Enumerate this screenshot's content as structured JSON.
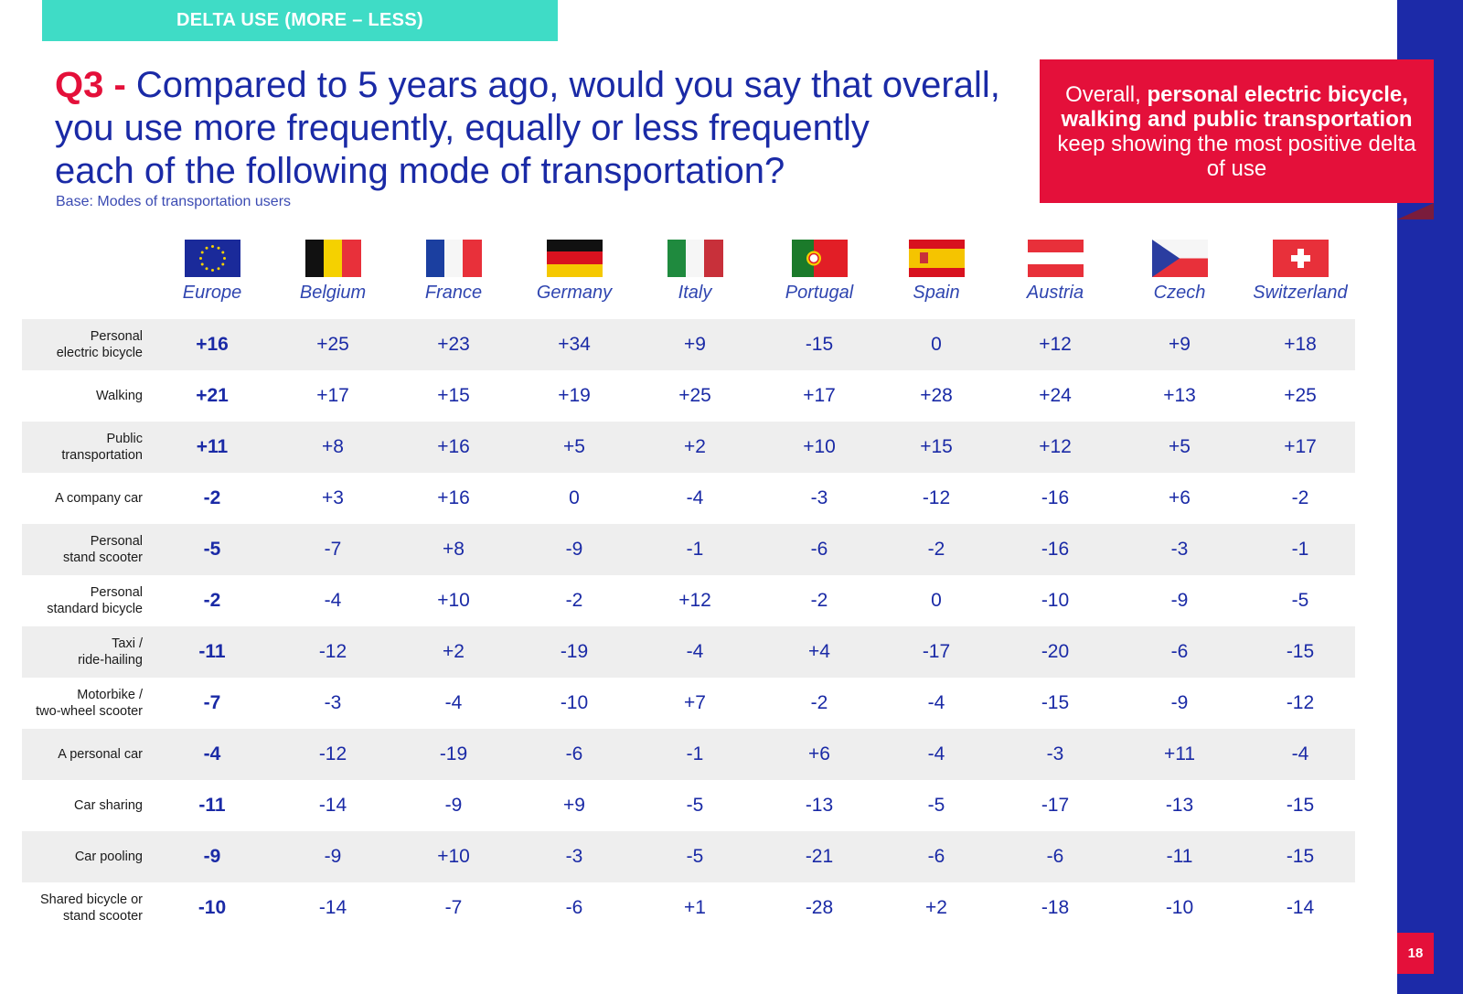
{
  "header": {
    "tag": "DELTA USE (MORE – LESS)",
    "page_number": "18"
  },
  "question": {
    "number": "Q3 -",
    "line1": " Compared to 5 years ago, would you say that overall,",
    "line2": "you use more frequently, equally or less frequently",
    "line3": "each of the following mode of transportation?",
    "base": "Base: Modes of transportation users"
  },
  "callout": {
    "prefix": "Overall, ",
    "bold": "personal electric bicycle, walking and public transportation",
    "suffix": " keep showing the most positive delta of use"
  },
  "countries": [
    {
      "name": "Europe",
      "flag": "eu-flag-icon"
    },
    {
      "name": "Belgium",
      "flag": "belgium-flag-icon"
    },
    {
      "name": "France",
      "flag": "france-flag-icon"
    },
    {
      "name": "Germany",
      "flag": "germany-flag-icon"
    },
    {
      "name": "Italy",
      "flag": "italy-flag-icon"
    },
    {
      "name": "Portugal",
      "flag": "portugal-flag-icon"
    },
    {
      "name": "Spain",
      "flag": "spain-flag-icon"
    },
    {
      "name": "Austria",
      "flag": "austria-flag-icon"
    },
    {
      "name": "Czech",
      "flag": "czech-flag-icon"
    },
    {
      "name": "Switzerland",
      "flag": "switzerland-flag-icon"
    }
  ],
  "rows": [
    {
      "label": [
        "Personal",
        "electric bicycle"
      ],
      "values": [
        "+16",
        "+25",
        "+23",
        "+34",
        "+9",
        "-15",
        "0",
        "+12",
        "+9",
        "+18"
      ]
    },
    {
      "label": [
        "Walking"
      ],
      "values": [
        "+21",
        "+17",
        "+15",
        "+19",
        "+25",
        "+17",
        "+28",
        "+24",
        "+13",
        "+25"
      ]
    },
    {
      "label": [
        "Public",
        "transportation"
      ],
      "values": [
        "+11",
        "+8",
        "+16",
        "+5",
        "+2",
        "+10",
        "+15",
        "+12",
        "+5",
        "+17"
      ]
    },
    {
      "label": [
        "A company car"
      ],
      "values": [
        "-2",
        "+3",
        "+16",
        "0",
        "-4",
        "-3",
        "-12",
        "-16",
        "+6",
        "-2"
      ]
    },
    {
      "label": [
        "Personal",
        "stand scooter"
      ],
      "values": [
        "-5",
        "-7",
        "+8",
        "-9",
        "-1",
        "-6",
        "-2",
        "-16",
        "-3",
        "-1"
      ]
    },
    {
      "label": [
        "Personal",
        "standard bicycle"
      ],
      "values": [
        "-2",
        "-4",
        "+10",
        "-2",
        "+12",
        "-2",
        "0",
        "-10",
        "-9",
        "-5"
      ]
    },
    {
      "label": [
        "Taxi /",
        "ride-hailing"
      ],
      "values": [
        "-11",
        "-12",
        "+2",
        "-19",
        "-4",
        "+4",
        "-17",
        "-20",
        "-6",
        "-15"
      ]
    },
    {
      "label": [
        "Motorbike /",
        "two-wheel scooter"
      ],
      "values": [
        "-7",
        "-3",
        "-4",
        "-10",
        "+7",
        "-2",
        "-4",
        "-15",
        "-9",
        "-12"
      ]
    },
    {
      "label": [
        "A personal car"
      ],
      "values": [
        "-4",
        "-12",
        "-19",
        "-6",
        "-1",
        "+6",
        "-4",
        "-3",
        "+11",
        "-4"
      ]
    },
    {
      "label": [
        "Car sharing"
      ],
      "values": [
        "-11",
        "-14",
        "-9",
        "+9",
        "-5",
        "-13",
        "-5",
        "-17",
        "-13",
        "-15"
      ]
    },
    {
      "label": [
        "Car pooling"
      ],
      "values": [
        "-9",
        "-9",
        "+10",
        "-3",
        "-5",
        "-21",
        "-6",
        "-6",
        "-11",
        "-15"
      ]
    },
    {
      "label": [
        "Shared bicycle or",
        "stand scooter"
      ],
      "values": [
        "-10",
        "-14",
        "-7",
        "-6",
        "+1",
        "-28",
        "+2",
        "-18",
        "-10",
        "-14"
      ]
    }
  ],
  "colors": {
    "accent_teal": "#3fdcc6",
    "accent_red": "#e4103a",
    "brand_blue": "#1a2aa6",
    "side_bar": "#1c2aa8"
  }
}
